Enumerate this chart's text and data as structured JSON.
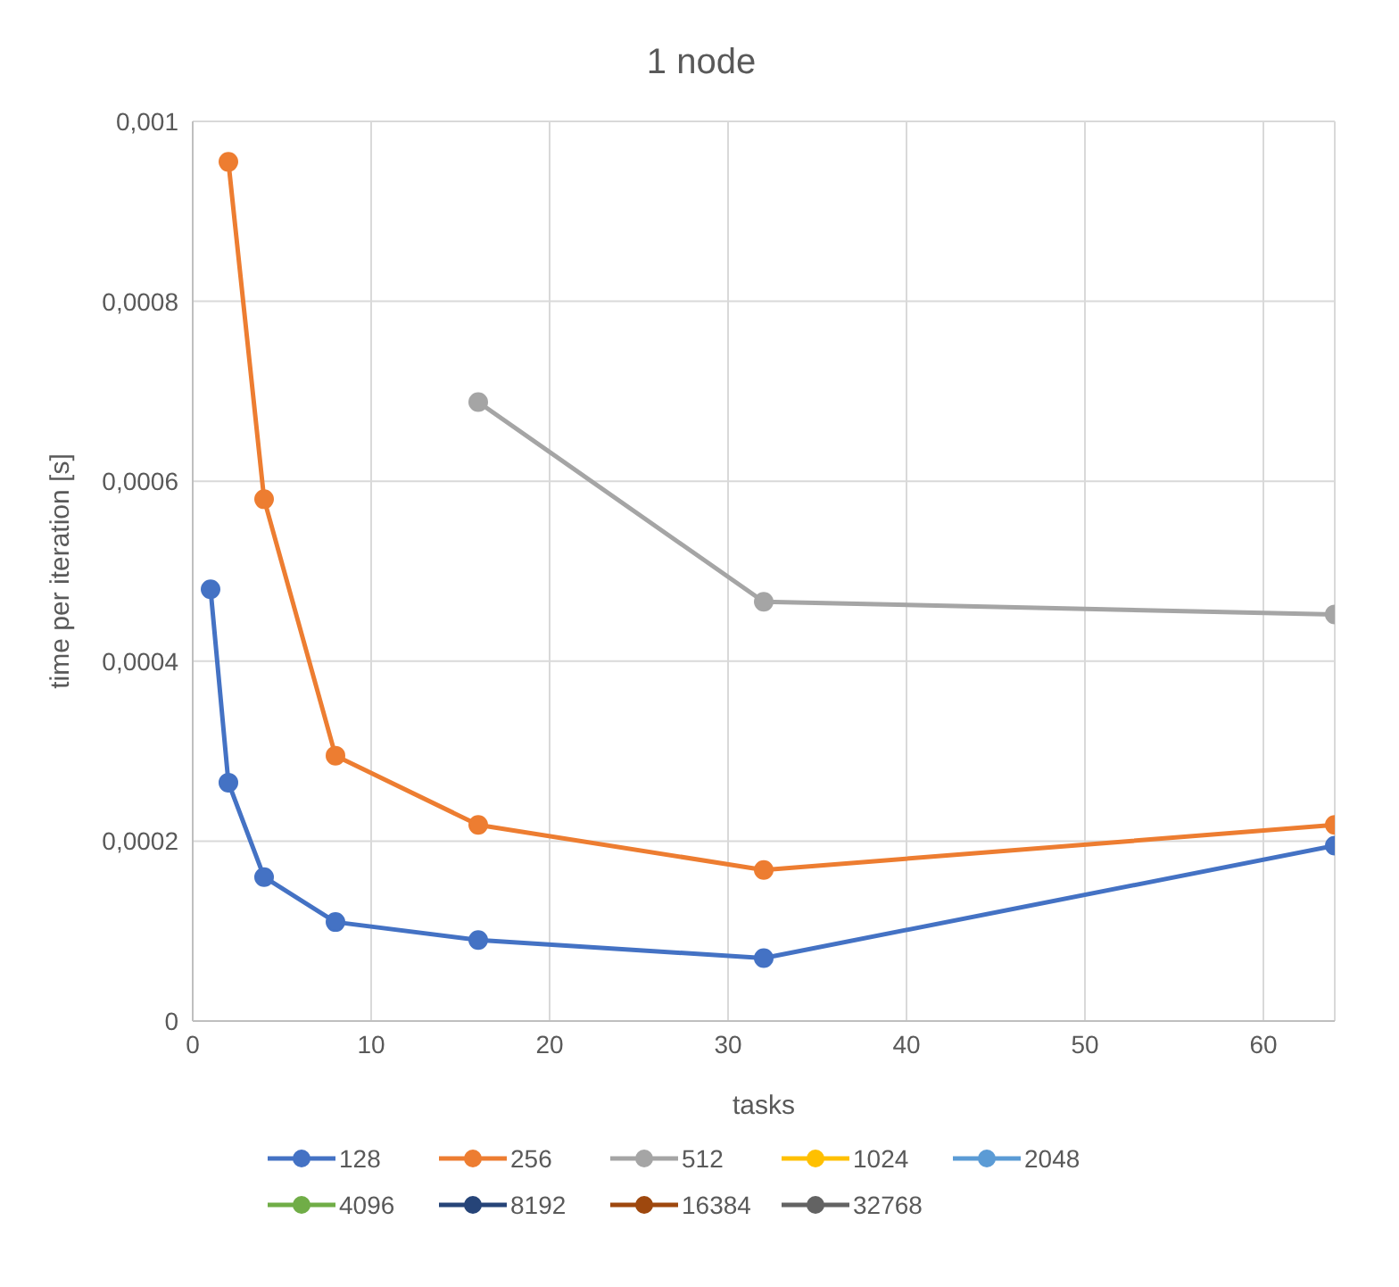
{
  "chart_data": {
    "type": "line",
    "title": "1 node",
    "xlabel": "tasks",
    "ylabel": "time per iteration [s]",
    "x": [
      1,
      2,
      4,
      8,
      16,
      32,
      64
    ],
    "series": [
      {
        "name": "128",
        "color": "#4472c4",
        "values": [
          0.00048,
          0.000265,
          0.00016,
          0.00011,
          9e-05,
          7e-05,
          0.000195
        ]
      },
      {
        "name": "256",
        "color": "#ed7d31",
        "values": [
          null,
          0.000955,
          0.00058,
          0.000295,
          0.000218,
          0.000168,
          0.000218
        ]
      },
      {
        "name": "512",
        "color": "#a5a5a5",
        "values": [
          null,
          null,
          null,
          null,
          0.000688,
          0.000466,
          0.000452
        ]
      },
      {
        "name": "1024",
        "color": "#ffc000",
        "values": [
          null,
          null,
          null,
          null,
          null,
          null,
          null
        ]
      },
      {
        "name": "2048",
        "color": "#5b9bd5",
        "values": [
          null,
          null,
          null,
          null,
          null,
          null,
          null
        ]
      },
      {
        "name": "4096",
        "color": "#70ad47",
        "values": [
          null,
          null,
          null,
          null,
          null,
          null,
          null
        ]
      },
      {
        "name": "8192",
        "color": "#264478",
        "values": [
          null,
          null,
          null,
          null,
          null,
          null,
          null
        ]
      },
      {
        "name": "16384",
        "color": "#9e480e",
        "values": [
          null,
          null,
          null,
          null,
          null,
          null,
          null
        ]
      },
      {
        "name": "32768",
        "color": "#636363",
        "values": [
          null,
          null,
          null,
          null,
          null,
          null,
          null
        ]
      }
    ],
    "xlim": [
      0,
      64
    ],
    "xticks": [
      0,
      10,
      20,
      30,
      40,
      50,
      60
    ],
    "ylim": [
      0,
      0.001
    ],
    "yticks": [
      {
        "value": 0,
        "label": "0"
      },
      {
        "value": 0.0002,
        "label": "0,0002"
      },
      {
        "value": 0.0004,
        "label": "0,0004"
      },
      {
        "value": 0.0006,
        "label": "0,0006"
      },
      {
        "value": 0.0008,
        "label": "0,0008"
      },
      {
        "value": 0.001,
        "label": "0,001"
      }
    ],
    "grid": true,
    "legend": "bottom",
    "marker": "circle",
    "line_style": "solid"
  }
}
